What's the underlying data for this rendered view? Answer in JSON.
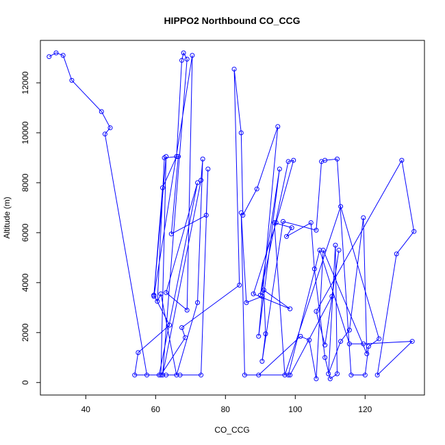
{
  "chart_data": {
    "type": "line",
    "title": "HIPPO2 Northbound CO_CCG",
    "xlabel": "CO_CCG",
    "ylabel": "Altitude (m)",
    "xlim": [
      27,
      137
    ],
    "ylim": [
      -500,
      13700
    ],
    "x_ticks": [
      40,
      60,
      80,
      100,
      120
    ],
    "y_ticks": [
      0,
      2000,
      4000,
      6000,
      8000,
      10000,
      12000
    ],
    "grid": false,
    "line_color": "#0000ff",
    "marker": "open-circle",
    "series": [
      {
        "x": [
          29.5,
          31.5,
          33.5,
          36,
          44.5,
          47,
          45.5,
          57.5,
          63,
          67,
          73,
          75,
          74.5,
          64.5,
          66.5,
          62.5,
          60.5,
          61.5,
          66,
          72,
          73.5,
          73,
          62,
          69,
          68,
          67.5,
          66,
          62,
          59.5,
          64,
          55,
          54,
          61,
          72,
          63,
          69,
          70.5,
          59.5,
          59.5,
          63,
          61.5,
          68.5,
          67.5,
          84,
          82.5,
          84.5,
          85,
          89,
          95,
          89.5,
          95.5,
          90,
          98,
          99.5,
          94.5,
          88,
          98.5,
          91,
          91.5,
          90.5,
          96.5,
          106,
          107.5,
          108.5,
          112,
          116,
          120,
          121,
          124,
          113,
          97,
          94,
          99,
          97.5,
          104.5,
          105.5,
          108.5,
          110,
          112,
          111.5,
          109.5,
          113,
          115.5,
          119.5,
          120.5,
          108,
          106,
          104,
          101.5,
          89.5,
          98.5,
          110.5,
          112.5,
          108.5,
          106,
          130.5,
          134,
          129,
          123.5,
          133.5,
          119.5,
          115.5,
          107,
          98,
          85.5,
          84.5,
          86,
          90.5
        ],
        "y": [
          13050,
          13200,
          13100,
          12100,
          10850,
          10200,
          9950,
          300,
          300,
          300,
          300,
          8550,
          6700,
          5950,
          9050,
          9000,
          3250,
          3550,
          300,
          3200,
          8950,
          8100,
          300,
          12950,
          13200,
          12900,
          9050,
          7800,
          3500,
          2300,
          1200,
          300,
          300,
          8000,
          3600,
          2900,
          13100,
          3450,
          3500,
          9050,
          300,
          1800,
          2200,
          3900,
          12550,
          10000,
          6700,
          7750,
          10250,
          1850,
          8550,
          3500,
          8850,
          8900,
          6400,
          3550,
          2950,
          3700,
          1950,
          850,
          6450,
          6100,
          8850,
          8900,
          8950,
          300,
          300,
          1450,
          1750,
          7050,
          300,
          6400,
          6200,
          5850,
          6400,
          4550,
          1000,
          150,
          350,
          5500,
          350,
          1650,
          2100,
          6600,
          1150,
          5300,
          150,
          1700,
          1850,
          300,
          300,
          3450,
          5300,
          1500,
          2850,
          8900,
          6050,
          5150,
          300,
          1650,
          1550,
          1550,
          5300,
          300,
          300,
          6800,
          3200,
          3450
        ]
      }
    ]
  }
}
